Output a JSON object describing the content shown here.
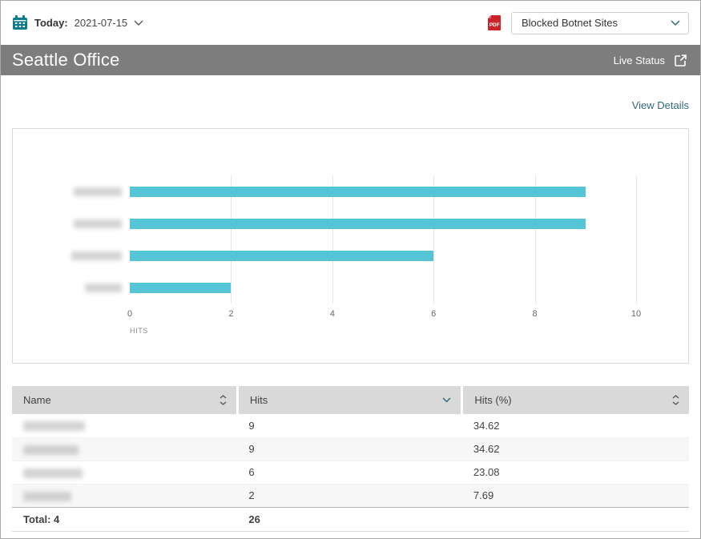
{
  "topbar": {
    "date_label": "Today:",
    "date_value": "2021-07-15",
    "report_select": {
      "value": "Blocked Botnet Sites"
    }
  },
  "header": {
    "title": "Seattle Office",
    "live_status_label": "Live Status"
  },
  "links": {
    "view_details": "View Details"
  },
  "chart_data": {
    "type": "bar",
    "orientation": "horizontal",
    "title": "",
    "xlabel": "HITS",
    "ylabel": "",
    "xlim": [
      0,
      10
    ],
    "xticks": [
      0,
      2,
      4,
      6,
      8,
      10
    ],
    "grid": "vertical",
    "bar_color": "#55c4d5",
    "categories_redacted": true,
    "categories": [
      "[redacted-1]",
      "[redacted-2]",
      "[redacted-3]",
      "[redacted-4]"
    ],
    "category_blob_widths": [
      60,
      60,
      63,
      46
    ],
    "values": [
      9,
      9,
      6,
      2
    ]
  },
  "table": {
    "columns": [
      {
        "label": "Name",
        "sort": "both"
      },
      {
        "label": "Hits",
        "sort": "desc"
      },
      {
        "label": "Hits (%)",
        "sort": "both"
      }
    ],
    "rows": [
      {
        "name_redacted": true,
        "name_blob_width": 77,
        "hits": "9",
        "hits_pct": "34.62"
      },
      {
        "name_redacted": true,
        "name_blob_width": 69,
        "hits": "9",
        "hits_pct": "34.62"
      },
      {
        "name_redacted": true,
        "name_blob_width": 74,
        "hits": "6",
        "hits_pct": "23.08"
      },
      {
        "name_redacted": true,
        "name_blob_width": 60,
        "hits": "2",
        "hits_pct": "7.69"
      }
    ],
    "total": {
      "label": "Total: 4",
      "hits_total": "26"
    }
  },
  "colors": {
    "accent_teal": "#0f7c8c",
    "bar_teal": "#55c4d5",
    "band_gray": "#7d7d7d",
    "link_blue": "#33677f",
    "pdf_red": "#cc2229",
    "table_header_bg": "#d9d9d9",
    "row_stripe": "#f7f7f7"
  }
}
